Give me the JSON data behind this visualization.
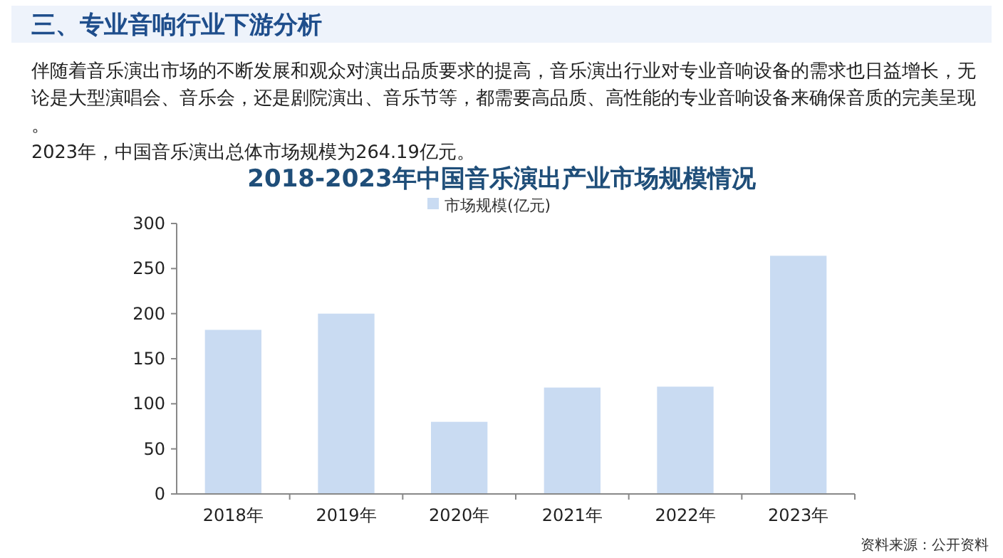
{
  "chart_data": {
    "type": "bar",
    "title": "2018-2023年中国音乐演出产业市场规模情况",
    "annotations": [
      "三、专业音响行业下游分析",
      "伴随着音乐演出市场的不断发展和观众对演出品质要求的提高，音乐演出行业对专业音响设备的需求也日益增长，无论是大型演唱会、音乐会，还是剧院演出、音乐节等，都需要高品质、高性能的专业音响设备来确保音质的完美呈现。",
      "2023年，中国音乐演出总体市场规模为264.19亿元。",
      "资料来源：公开资料"
    ],
    "categories": [
      "2018年",
      "2019年",
      "2020年",
      "2021年",
      "2022年",
      "2023年"
    ],
    "series": [
      {
        "name": "市场规模(亿元)",
        "color": "#c9dbf2",
        "values": [
          182,
          200,
          80,
          118,
          119,
          264.19
        ]
      }
    ],
    "ylim": [
      0,
      300
    ],
    "yticks": [
      0,
      50,
      100,
      150,
      200,
      250,
      300
    ],
    "grid": false,
    "legend": "top"
  }
}
